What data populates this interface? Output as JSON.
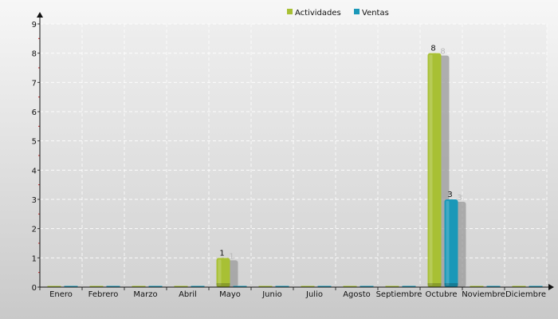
{
  "chart_data": {
    "type": "bar",
    "categories": [
      "Enero",
      "Febrero",
      "Marzo",
      "Abril",
      "Mayo",
      "Junio",
      "Julio",
      "Agosto",
      "Septiembre",
      "Octubre",
      "Noviembre",
      "Diciembre"
    ],
    "series": [
      {
        "name": "Actividades",
        "values": [
          0,
          0,
          0,
          0,
          1,
          0,
          0,
          0,
          0,
          8,
          0,
          0
        ],
        "color": "#a8c034"
      },
      {
        "name": "Ventas",
        "values": [
          0,
          0,
          0,
          0,
          0,
          0,
          0,
          0,
          0,
          3,
          0,
          0
        ],
        "color": "#1a98b8"
      }
    ],
    "y_ticks": [
      "0",
      "1",
      "2",
      "3",
      "4",
      "5",
      "6",
      "7",
      "8",
      "9"
    ],
    "ylim": [
      0,
      9
    ],
    "grid": true,
    "legend_position": "top-center"
  }
}
